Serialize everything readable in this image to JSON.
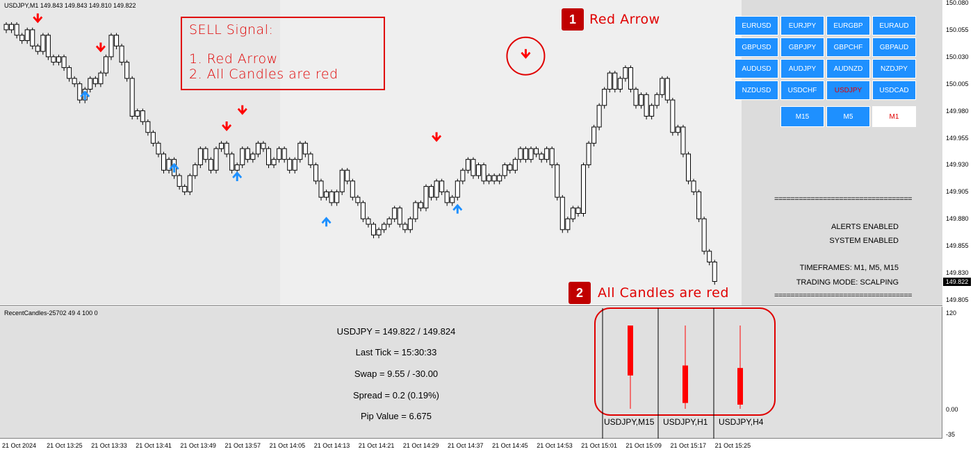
{
  "chart": {
    "symbol_label": "USDJPY,M1  149.843 149.843 149.810 149.822",
    "price_ticks": [
      "150.080",
      "150.055",
      "150.030",
      "150.005",
      "149.980",
      "149.955",
      "149.930",
      "149.905",
      "149.880",
      "149.855",
      "149.830",
      "149.805"
    ],
    "current_price_tag": "149.822",
    "time_ticks": [
      "21 Oct 2024",
      "21 Oct 13:25",
      "21 Oct 13:33",
      "21 Oct 13:41",
      "21 Oct 13:49",
      "21 Oct 13:57",
      "21 Oct 14:05",
      "21 Oct 14:13",
      "21 Oct 14:21",
      "21 Oct 14:29",
      "21 Oct 14:37",
      "21 Oct 14:45",
      "21 Oct 14:53",
      "21 Oct 15:01",
      "21 Oct 15:09",
      "21 Oct 15:17",
      "21 Oct 15:25"
    ],
    "candles_close": [
      150.055,
      150.06,
      150.05,
      150.045,
      150.055,
      150.04,
      150.035,
      150.05,
      150.03,
      150.025,
      150.03,
      150.02,
      150.01,
      150.005,
      149.99,
      150.0,
      150.01,
      150.005,
      150.015,
      150.03,
      150.05,
      150.04,
      150.025,
      150.01,
      149.975,
      149.98,
      149.97,
      149.96,
      149.95,
      149.94,
      149.925,
      149.935,
      149.92,
      149.91,
      149.905,
      149.92,
      149.93,
      149.945,
      149.935,
      149.925,
      149.945,
      149.95,
      149.94,
      149.925,
      149.93,
      149.945,
      149.935,
      149.94,
      149.95,
      149.945,
      149.93,
      149.935,
      149.945,
      149.935,
      149.925,
      149.935,
      149.95,
      149.94,
      149.93,
      149.915,
      149.9,
      149.905,
      149.895,
      149.905,
      149.925,
      149.915,
      149.9,
      149.895,
      149.88,
      149.875,
      149.865,
      149.87,
      149.875,
      149.88,
      149.89,
      149.875,
      149.87,
      149.88,
      149.895,
      149.89,
      149.91,
      149.9,
      149.915,
      149.905,
      149.895,
      149.9,
      149.915,
      149.925,
      149.935,
      149.92,
      149.93,
      149.915,
      149.92,
      149.915,
      149.92,
      149.93,
      149.925,
      149.935,
      149.945,
      149.935,
      149.945,
      149.94,
      149.935,
      149.945,
      149.93,
      149.9,
      149.87,
      149.88,
      149.89,
      149.885,
      149.93,
      149.95,
      149.965,
      149.985,
      150.0,
      150.015,
      150.0,
      150.01,
      150.02,
      150.0,
      149.985,
      149.995,
      149.975,
      149.985,
      149.995,
      150.01,
      149.99,
      149.96,
      149.965,
      149.94,
      149.915,
      149.905,
      149.88,
      149.85,
      149.84,
      149.822
    ],
    "red_arrows": [
      [
        6,
        150.065
      ],
      [
        18,
        150.038
      ],
      [
        42,
        149.965
      ],
      [
        45,
        149.98
      ],
      [
        82,
        149.955
      ],
      [
        99,
        150.032
      ]
    ],
    "blue_arrows": [
      [
        15,
        149.995
      ],
      [
        32,
        149.928
      ],
      [
        44,
        149.92
      ],
      [
        61,
        149.878
      ],
      [
        86,
        149.89
      ]
    ]
  },
  "annotations": {
    "sell_title": "SELL Signal:",
    "sell_line1": "1. Red Arrow",
    "sell_line2": "2. All Candles are red",
    "badge1": "1",
    "badge1_label": "Red Arrow",
    "badge2": "2",
    "badge2_label": "All Candles are red"
  },
  "symbol_buttons": [
    [
      "EURUSD",
      "EURJPY",
      "EURGBP",
      "EURAUD"
    ],
    [
      "GBPUSD",
      "GBPJPY",
      "GBPCHF",
      "GBPAUD"
    ],
    [
      "AUDUSD",
      "AUDJPY",
      "AUDNZD",
      "NZDJPY"
    ],
    [
      "NZDUSD",
      "USDCHF",
      "USDJPY",
      "USDCAD"
    ]
  ],
  "selected_symbol": "USDJPY",
  "timeframe_buttons": [
    "M15",
    "M5",
    "M1"
  ],
  "active_timeframe": "M1",
  "info": {
    "separator": "==================================",
    "alerts": "ALERTS ENABLED",
    "system": "SYSTEM ENABLED",
    "timeframes": "TIMEFRAMES: M1, M5, M15",
    "mode": "TRADING MODE: SCALPING"
  },
  "indicator": {
    "name": "RecentCandles-25702 49 4 100 0",
    "quote": "USDJPY = 149.822 / 149.824",
    "last_tick": "Last Tick = 15:30:33",
    "swap": "Swap = 9.55 / -30.00",
    "spread": "Spread = 0.2  (0.19%)",
    "pip_value": "Pip Value = 6.675",
    "axis_ticks": [
      "120",
      "0.00",
      "-35"
    ],
    "recent_candles": [
      {
        "label": "USDJPY,M15",
        "high": 100,
        "open": 100,
        "close": 40,
        "low": 0
      },
      {
        "label": "USDJPY,H1",
        "high": 100,
        "open": 52,
        "close": 7,
        "low": 0
      },
      {
        "label": "USDJPY,H4",
        "high": 100,
        "open": 49,
        "close": 5,
        "low": 0
      }
    ]
  },
  "colors": {
    "bear": "#ff0000",
    "bull_arrow": "#1e90ff",
    "button": "#1e90ff",
    "annotation": "#e00000"
  }
}
